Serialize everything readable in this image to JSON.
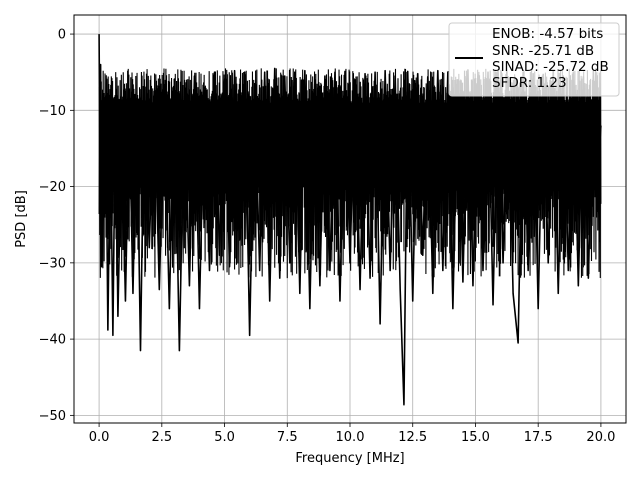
{
  "chart_data": {
    "type": "line",
    "title": "",
    "xlabel": "Frequency [MHz]",
    "ylabel": "PSD [dB]",
    "xlim": [
      -1.0,
      21.0
    ],
    "ylim": [
      -51.0,
      2.5
    ],
    "xticks": [
      0.0,
      2.5,
      5.0,
      7.5,
      10.0,
      12.5,
      15.0,
      17.5,
      20.0
    ],
    "xtick_labels": [
      "0.0",
      "2.5",
      "5.0",
      "7.5",
      "10.0",
      "12.5",
      "15.0",
      "17.5",
      "20.0"
    ],
    "yticks": [
      0,
      -10,
      -20,
      -30,
      -40,
      -50
    ],
    "ytick_labels": [
      "0",
      "−10",
      "−20",
      "−30",
      "−40",
      "−50"
    ],
    "grid": true,
    "legend_position": "top-right",
    "legend": {
      "lines": [
        "ENOB: -4.57 bits",
        "SNR: -25.71 dB",
        "SINAD: -25.72 dB",
        "SFDR: 1.23"
      ]
    },
    "series": [
      {
        "color": "#000000",
        "x": [
          0.0,
          0.03,
          0.06,
          0.1,
          0.15,
          0.2,
          0.27,
          0.35,
          0.45,
          0.55,
          0.65,
          0.75,
          0.9,
          1.05,
          1.2,
          1.35,
          1.5,
          1.65,
          1.8,
          2.0,
          2.2,
          2.4,
          2.6,
          2.8,
          3.0,
          3.2,
          3.4,
          3.6,
          3.8,
          4.0,
          4.2,
          4.4,
          4.6,
          4.8,
          5.0,
          5.2,
          5.4,
          5.6,
          5.8,
          6.0,
          6.2,
          6.4,
          6.6,
          6.8,
          7.0,
          7.2,
          7.4,
          7.6,
          7.8,
          8.0,
          8.2,
          8.4,
          8.6,
          8.8,
          9.0,
          9.2,
          9.4,
          9.6,
          9.8,
          10.0,
          10.2,
          10.4,
          10.6,
          10.8,
          11.0,
          11.2,
          11.4,
          11.6,
          11.8,
          12.0,
          12.15,
          12.3,
          12.5,
          12.7,
          12.9,
          13.1,
          13.3,
          13.5,
          13.7,
          13.9,
          14.1,
          14.3,
          14.5,
          14.7,
          14.9,
          15.1,
          15.3,
          15.5,
          15.7,
          15.9,
          16.1,
          16.3,
          16.5,
          16.7,
          16.9,
          17.1,
          17.3,
          17.5,
          17.7,
          17.9,
          18.1,
          18.3,
          18.5,
          18.7,
          18.9,
          19.1,
          19.3,
          19.5,
          19.7,
          19.85,
          20.0
        ],
        "y": [
          0.0,
          -17.0,
          -4.0,
          -30.5,
          -8.0,
          -22.0,
          -10.0,
          -38.8,
          -11.0,
          -39.5,
          -9.0,
          -37.0,
          -12.0,
          -35.0,
          -10.0,
          -34.0,
          -9.5,
          -41.5,
          -8.0,
          -28.0,
          -7.5,
          -33.5,
          -9.0,
          -36.0,
          -6.5,
          -41.5,
          -8.0,
          -33.0,
          -5.5,
          -36.0,
          -7.0,
          -31.0,
          -5.0,
          -29.0,
          -6.0,
          -30.5,
          -4.8,
          -27.0,
          -5.0,
          -39.5,
          -6.5,
          -31.0,
          -5.0,
          -35.0,
          -4.5,
          -32.0,
          -5.5,
          -30.0,
          -5.0,
          -34.0,
          -4.8,
          -36.0,
          -6.0,
          -33.0,
          -5.5,
          -31.0,
          -5.0,
          -35.0,
          -4.9,
          -30.0,
          -6.0,
          -33.5,
          -5.2,
          -32.0,
          -5.0,
          -38.0,
          -4.8,
          -31.0,
          -5.5,
          -33.5,
          -48.6,
          -4.9,
          -35.0,
          -5.2,
          -29.0,
          -5.6,
          -34.0,
          -4.8,
          -31.0,
          -5.0,
          -36.0,
          -6.0,
          -32.5,
          -4.7,
          -33.0,
          -5.5,
          -31.0,
          -5.0,
          -35.5,
          -4.9,
          -30.0,
          -5.6,
          -34.0,
          -40.5,
          -5.0,
          -31.0,
          -5.2,
          -36.0,
          -5.3,
          -30.0,
          -4.8,
          -34.0,
          -5.5,
          -31.0,
          -5.0,
          -33.0,
          -5.6,
          -32.0,
          -4.9,
          -20.0,
          -12.0
        ]
      }
    ]
  }
}
